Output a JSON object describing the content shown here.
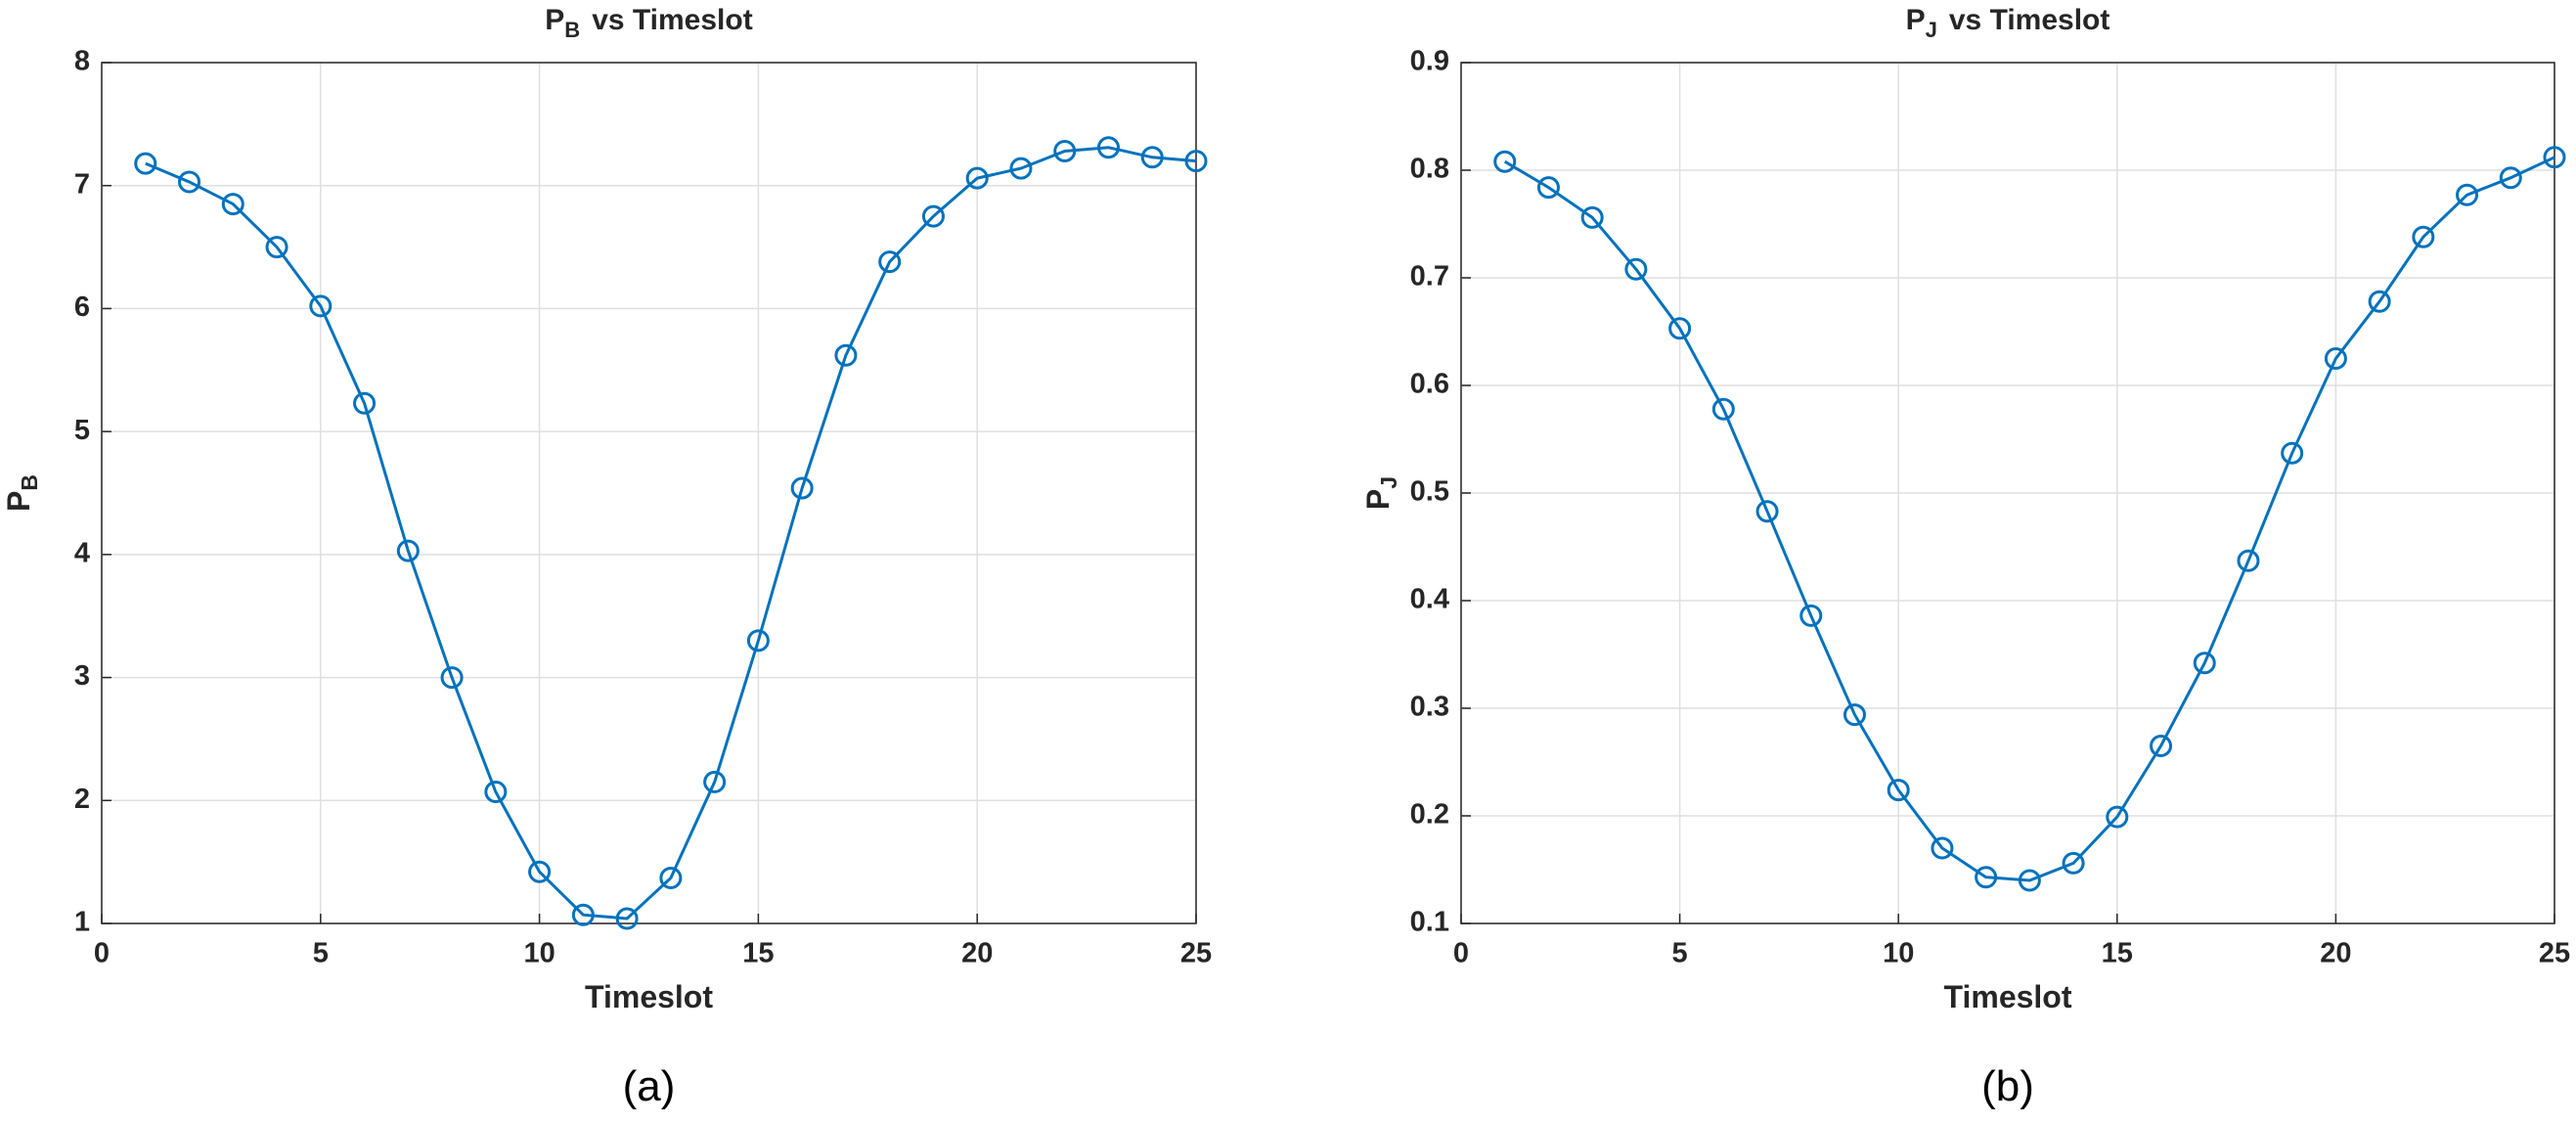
{
  "chart_data": [
    {
      "type": "line",
      "title": {
        "main": "P",
        "sub": "B",
        "rest": "vs Timeslot"
      },
      "xlabel": "Timeslot",
      "ylabel": {
        "main": "P",
        "sub": "B"
      },
      "caption": "(a)",
      "x": [
        1,
        2,
        3,
        4,
        5,
        6,
        7,
        8,
        9,
        10,
        11,
        12,
        13,
        14,
        15,
        16,
        17,
        18,
        19,
        20,
        21,
        22,
        23,
        24,
        25
      ],
      "values": [
        7.18,
        7.03,
        6.85,
        6.5,
        6.02,
        5.23,
        4.03,
        3.0,
        2.07,
        1.42,
        1.07,
        1.04,
        1.37,
        2.15,
        3.3,
        4.54,
        5.62,
        6.38,
        6.75,
        7.06,
        7.14,
        7.28,
        7.31,
        7.23,
        7.2
      ],
      "color": "#0072bd",
      "xlim": [
        0,
        25
      ],
      "xticks": [
        0,
        5,
        10,
        15,
        20,
        25
      ],
      "ylim": [
        1,
        8
      ],
      "yticks": [
        1,
        2,
        3,
        4,
        5,
        6,
        7,
        8
      ],
      "grid": true
    },
    {
      "type": "line",
      "title": {
        "main": "P",
        "sub": "J",
        "rest": "vs Timeslot"
      },
      "xlabel": "Timeslot",
      "ylabel": {
        "main": "P",
        "sub": "J"
      },
      "caption": "(b)",
      "x": [
        1,
        2,
        3,
        4,
        5,
        6,
        7,
        8,
        9,
        10,
        11,
        12,
        13,
        14,
        15,
        16,
        17,
        18,
        19,
        20,
        21,
        22,
        23,
        24,
        25
      ],
      "values": [
        0.808,
        0.784,
        0.756,
        0.708,
        0.653,
        0.578,
        0.483,
        0.386,
        0.294,
        0.224,
        0.17,
        0.143,
        0.14,
        0.156,
        0.199,
        0.265,
        0.342,
        0.437,
        0.537,
        0.625,
        0.678,
        0.738,
        0.777,
        0.793,
        0.812
      ],
      "color": "#0072bd",
      "xlim": [
        0,
        25
      ],
      "xticks": [
        0,
        5,
        10,
        15,
        20,
        25
      ],
      "ylim": [
        0.1,
        0.9
      ],
      "yticks": [
        0.1,
        0.2,
        0.3,
        0.4,
        0.5,
        0.6,
        0.7,
        0.8,
        0.9
      ],
      "grid": true
    }
  ]
}
